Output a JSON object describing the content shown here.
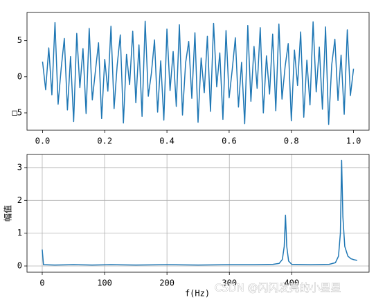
{
  "chart_data": [
    {
      "type": "line",
      "color": "#1f77b4",
      "x": [
        0,
        0.01,
        0.02,
        0.03,
        0.04,
        0.05,
        0.06,
        0.07,
        0.08,
        0.09,
        0.1,
        0.11,
        0.12,
        0.13,
        0.14,
        0.15,
        0.16,
        0.17,
        0.18,
        0.19,
        0.2,
        0.21,
        0.22,
        0.23,
        0.24,
        0.25,
        0.26,
        0.27,
        0.28,
        0.29,
        0.3,
        0.31,
        0.32,
        0.33,
        0.34,
        0.35,
        0.36,
        0.37,
        0.38,
        0.39,
        0.4,
        0.41,
        0.42,
        0.43,
        0.44,
        0.45,
        0.46,
        0.47,
        0.48,
        0.49,
        0.5,
        0.51,
        0.52,
        0.53,
        0.54,
        0.55,
        0.56,
        0.57,
        0.58,
        0.59,
        0.6,
        0.61,
        0.62,
        0.63,
        0.64,
        0.65,
        0.66,
        0.67,
        0.68,
        0.69,
        0.7,
        0.71,
        0.72,
        0.73,
        0.74,
        0.75,
        0.76,
        0.77,
        0.78,
        0.79,
        0.8,
        0.81,
        0.82,
        0.83,
        0.84,
        0.85,
        0.86,
        0.87,
        0.88,
        0.89,
        0.9,
        0.91,
        0.92,
        0.93,
        0.94,
        0.95,
        0.96,
        0.97,
        0.98,
        0.99,
        1.0
      ],
      "values": [
        2.1,
        -1.8,
        4.0,
        -2.5,
        7.5,
        -3.8,
        1.2,
        5.3,
        -4.6,
        2.8,
        -6.2,
        6.0,
        -1.5,
        3.9,
        -5.1,
        6.7,
        -3.2,
        0.8,
        4.7,
        -5.8,
        2.4,
        -2.0,
        7.0,
        -4.4,
        1.6,
        5.8,
        -6.4,
        3.1,
        -1.1,
        6.3,
        -3.6,
        4.4,
        -5.5,
        7.7,
        -2.7,
        0.5,
        5.1,
        -4.9,
        2.2,
        -6.0,
        6.6,
        -1.9,
        3.5,
        -4.1,
        7.2,
        -5.3,
        1.9,
        4.9,
        -3.0,
        6.1,
        -6.3,
        2.6,
        -2.2,
        5.6,
        -4.8,
        7.4,
        -1.4,
        3.3,
        -5.9,
        6.4,
        -2.9,
        1.0,
        5.4,
        -4.2,
        2.0,
        -6.5,
        7.1,
        -3.4,
        4.2,
        -1.6,
        6.8,
        -5.0,
        2.9,
        -2.4,
        5.9,
        -4.7,
        7.3,
        -3.1,
        1.4,
        4.6,
        -6.1,
        3.7,
        -1.2,
        6.2,
        -5.6,
        2.3,
        -3.9,
        7.6,
        -2.1,
        4.1,
        -4.5,
        6.9,
        -6.6,
        1.7,
        5.2,
        -3.3,
        3.0,
        -5.2,
        6.5,
        -2.6,
        1.1
      ],
      "xlim": [
        -0.05,
        1.05
      ],
      "ylim": [
        -7.4,
        8.9
      ],
      "xticks": [
        {
          "value": 0,
          "label": "0.0"
        },
        0.2,
        0.4,
        0.6,
        0.8,
        {
          "value": 1,
          "label": "1.0"
        }
      ],
      "yticks": [
        {
          "value": -5,
          "label": "□5"
        },
        0,
        5
      ],
      "grid": false
    },
    {
      "type": "line",
      "color": "#1f77b4",
      "xlabel": "f(Hz)",
      "ylabel": "幅值",
      "x": [
        0,
        2,
        20,
        50,
        80,
        110,
        150,
        200,
        250,
        300,
        340,
        370,
        380,
        385,
        388,
        390,
        392,
        395,
        400,
        430,
        460,
        470,
        475,
        478,
        480,
        482,
        485,
        490,
        495,
        500,
        505
      ],
      "values": [
        0.5,
        0.04,
        0.03,
        0.04,
        0.03,
        0.04,
        0.03,
        0.04,
        0.03,
        0.04,
        0.04,
        0.05,
        0.08,
        0.2,
        0.6,
        1.55,
        0.6,
        0.15,
        0.05,
        0.04,
        0.05,
        0.1,
        0.3,
        1.0,
        3.22,
        1.5,
        0.6,
        0.3,
        0.22,
        0.19,
        0.17
      ],
      "xlim": [
        -24.4,
        524
      ],
      "ylim": [
        -0.19,
        3.4
      ],
      "xticks": [
        0,
        100,
        200,
        300,
        400
      ],
      "yticks": [
        0,
        1,
        2,
        3
      ],
      "grid": true
    }
  ],
  "watermark": "CSDN @闪闪发亮的小星星"
}
